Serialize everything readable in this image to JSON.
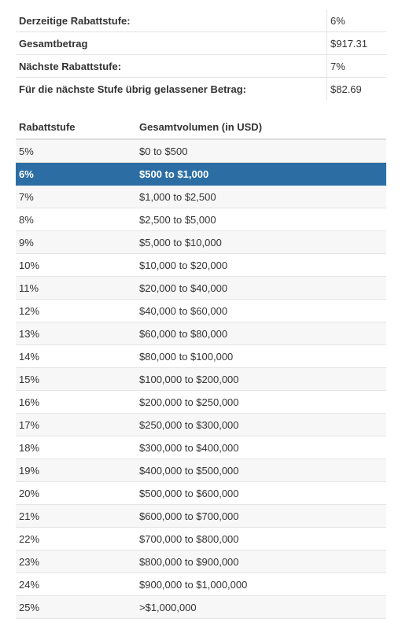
{
  "summary": {
    "rows": [
      {
        "label": "Derzeitige Rabattstufe:",
        "value": "6%"
      },
      {
        "label": "Gesamtbetrag",
        "value": "$917.31"
      },
      {
        "label": "Nächste Rabattstufe:",
        "value": "7%"
      },
      {
        "label": "Für die nächste Stufe übrig gelassener Betrag:",
        "value": "$82.69"
      }
    ]
  },
  "tiers": {
    "headers": {
      "tier": "Rabattstufe",
      "volume": "Gesamtvolumen (in USD)"
    },
    "active_index": 1,
    "rows": [
      {
        "tier": "5%",
        "volume": "$0 to $500"
      },
      {
        "tier": "6%",
        "volume": "$500 to $1,000"
      },
      {
        "tier": "7%",
        "volume": "$1,000 to $2,500"
      },
      {
        "tier": "8%",
        "volume": "$2,500 to $5,000"
      },
      {
        "tier": "9%",
        "volume": "$5,000 to $10,000"
      },
      {
        "tier": "10%",
        "volume": "$10,000 to $20,000"
      },
      {
        "tier": "11%",
        "volume": "$20,000 to $40,000"
      },
      {
        "tier": "12%",
        "volume": "$40,000 to $60,000"
      },
      {
        "tier": "13%",
        "volume": "$60,000 to $80,000"
      },
      {
        "tier": "14%",
        "volume": "$80,000 to $100,000"
      },
      {
        "tier": "15%",
        "volume": "$100,000 to $200,000"
      },
      {
        "tier": "16%",
        "volume": "$200,000 to $250,000"
      },
      {
        "tier": "17%",
        "volume": "$250,000 to $300,000"
      },
      {
        "tier": "18%",
        "volume": "$300,000 to $400,000"
      },
      {
        "tier": "19%",
        "volume": "$400,000 to $500,000"
      },
      {
        "tier": "20%",
        "volume": "$500,000 to $600,000"
      },
      {
        "tier": "21%",
        "volume": "$600,000 to $700,000"
      },
      {
        "tier": "22%",
        "volume": "$700,000 to $800,000"
      },
      {
        "tier": "23%",
        "volume": "$800,000 to $900,000"
      },
      {
        "tier": "24%",
        "volume": "$900,000 to $1,000,000"
      },
      {
        "tier": "25%",
        "volume": ">$1,000,000"
      }
    ]
  },
  "colors": {
    "active_row": "#2c6ea3",
    "stripe": "#f7f7f7",
    "border": "#e5e5e5"
  }
}
